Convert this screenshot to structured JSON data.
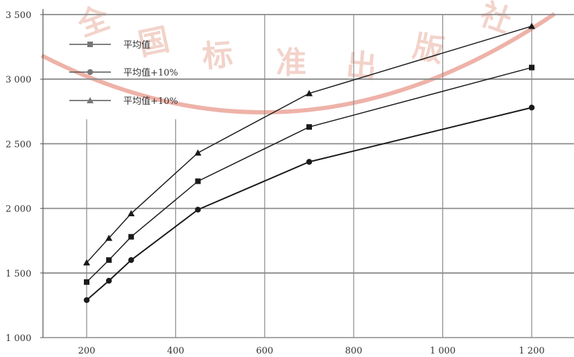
{
  "chart_data": {
    "type": "line",
    "title": "",
    "xlabel": "",
    "ylabel": "",
    "x": [
      200,
      250,
      300,
      450,
      700,
      1200
    ],
    "xlim": [
      60,
      1250
    ],
    "ylim": [
      1000,
      3500
    ],
    "x_ticks": [
      200,
      400,
      600,
      800,
      1000,
      1200
    ],
    "x_tick_labels": [
      "200",
      "400",
      "600",
      "800",
      "1 000",
      "1 200"
    ],
    "y_ticks": [
      1000,
      1500,
      2000,
      2500,
      3000,
      3500
    ],
    "y_tick_labels": [
      "1 000",
      "1 500",
      "2 000",
      "2 500",
      "3 000",
      "3 500"
    ],
    "grid": true,
    "legend_position": "top-left",
    "series": [
      {
        "name": "平均值",
        "marker": "square",
        "values": [
          1290,
          1440,
          1600,
          1990,
          2360,
          2780
        ]
      },
      {
        "name": "平均值+10%",
        "marker": "circle",
        "values": [
          1430,
          1600,
          1780,
          2210,
          2630,
          3090
        ]
      },
      {
        "name": "平均值+10%",
        "marker": "triangle",
        "values": [
          1580,
          1770,
          1960,
          2430,
          2890,
          3410
        ]
      }
    ]
  },
  "watermark": {
    "chars": [
      "全",
      "国",
      "标",
      "准",
      "出",
      "版",
      "社"
    ],
    "color": "#d9543f"
  }
}
